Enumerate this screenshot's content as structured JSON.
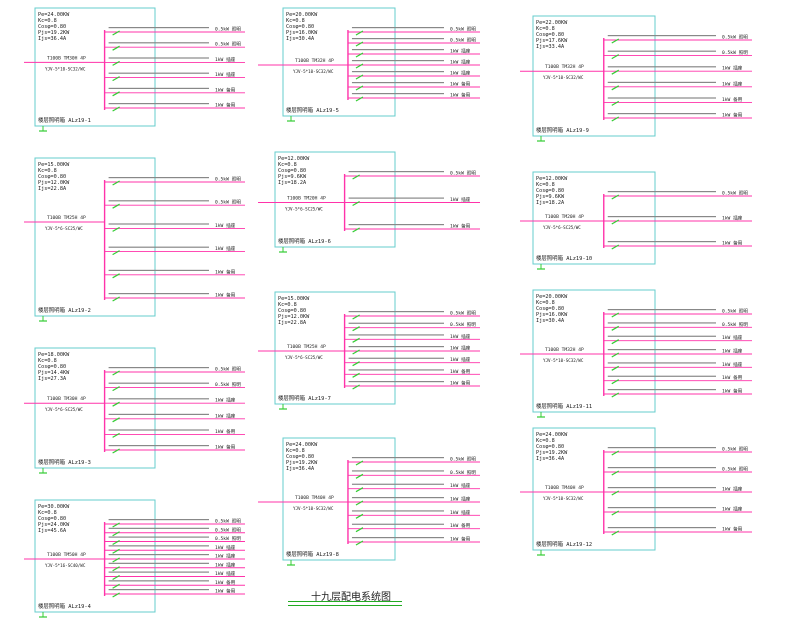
{
  "colors": {
    "frame": "#66cccc",
    "feeder": "#ff33aa",
    "bus": "#ff33aa",
    "breaker": "#33cc33",
    "text": "#222222"
  },
  "drawing_title": "十九层配电系统图",
  "panels": [
    {
      "params": [
        "Pe=24.00KW",
        "Kc=0.8",
        "Cosφ=0.80",
        "Pjs=19.2KW",
        "Ijs=36.4A"
      ],
      "incoming": [
        "T100B TM30H 4P",
        "YJV-5*10-SC32/WC"
      ],
      "footer": "楼层照明箱  ALz19-1",
      "circuits": 6,
      "labels": [
        "0.5kW 照明",
        "0.5kW 照明",
        "1kW 插座",
        "1kW 插座",
        "1kW 备用",
        "1kW 备用"
      ]
    },
    {
      "params": [
        "Pe=15.00KW",
        "Kc=0.8",
        "Cosφ=0.80",
        "Pjs=12.0KW",
        "Ijs=22.8A"
      ],
      "incoming": [
        "T100B TM25H 4P",
        "YJV-5*6-SC25/WC"
      ],
      "footer": "楼层照明箱  ALz19-2",
      "circuits": 6,
      "labels": [
        "0.5kW 照明",
        "0.5kW 照明",
        "1kW 插座",
        "1kW 插座",
        "1kW 备用",
        "1kW 备用"
      ]
    },
    {
      "params": [
        "Pe=18.00KW",
        "Kc=0.8",
        "Cosφ=0.80",
        "Pjs=14.4KW",
        "Ijs=27.3A"
      ],
      "incoming": [
        "T100B TM30H 4P",
        "YJV-5*6-SC25/WC"
      ],
      "footer": "楼层照明箱  ALz19-3",
      "circuits": 6,
      "labels": [
        "0.5kW 照明",
        "0.5kW 照明",
        "1kW 插座",
        "1kW 插座",
        "1kW 备用",
        "1kW 备用"
      ]
    },
    {
      "params": [
        "Pe=30.00KW",
        "Kc=0.8",
        "Cosφ=0.80",
        "Pjs=24.0KW",
        "Ijs=45.6A"
      ],
      "incoming": [
        "T100B TM50H 4P",
        "YJV-5*16-SC40/WC"
      ],
      "footer": "楼层照明箱  ALz19-4",
      "circuits": 9,
      "labels": [
        "0.5kW 照明",
        "0.5kW 照明",
        "0.5kW 照明",
        "1kW 插座",
        "1kW 插座",
        "1kW 插座",
        "1kW 插座",
        "1kW 备用",
        "1kW 备用"
      ]
    },
    {
      "params": [
        "Pe=20.00KW",
        "Kc=0.8",
        "Cosφ=0.80",
        "Pjs=16.0KW",
        "Ijs=30.4A"
      ],
      "incoming": [
        "T100B TM32H 4P",
        "YJV-5*10-SC32/WC"
      ],
      "footer": "楼层照明箱  ALz19-5",
      "circuits": 7,
      "labels": [
        "0.5kW 照明",
        "0.5kW 照明",
        "1kW 插座",
        "1kW 插座",
        "1kW 插座",
        "1kW 备用",
        "1kW 备用"
      ]
    },
    {
      "params": [
        "Pe=12.00KW",
        "Kc=0.8",
        "Cosφ=0.80",
        "Pjs=9.6KW",
        "Ijs=18.2A"
      ],
      "incoming": [
        "T100B TM20H 4P",
        "YJV-5*6-SC25/WC"
      ],
      "footer": "楼层照明箱  ALz19-6",
      "circuits": 3,
      "labels": [
        "0.5kW 照明",
        "1kW 插座",
        "1kW 备用"
      ]
    },
    {
      "params": [
        "Pe=15.00KW",
        "Kc=0.8",
        "Cosφ=0.80",
        "Pjs=12.0KW",
        "Ijs=22.8A"
      ],
      "incoming": [
        "T100B TM25H 4P",
        "YJV-5*6-SC25/WC"
      ],
      "footer": "楼层照明箱  ALz19-7",
      "circuits": 7,
      "labels": [
        "0.5kW 照明",
        "0.5kW 照明",
        "1kW 插座",
        "1kW 插座",
        "1kW 插座",
        "1kW 备用",
        "1kW 备用"
      ]
    },
    {
      "params": [
        "Pe=24.00KW",
        "Kc=0.8",
        "Cosφ=0.80",
        "Pjs=19.2KW",
        "Ijs=36.4A"
      ],
      "incoming": [
        "T100B TM40H 4P",
        "YJV-5*10-SC32/WC"
      ],
      "footer": "楼层照明箱  ALz19-8",
      "circuits": 7,
      "labels": [
        "0.5kW 照明",
        "0.5kW 照明",
        "1kW 插座",
        "1kW 插座",
        "1kW 插座",
        "1kW 备用",
        "1kW 备用"
      ]
    },
    {
      "params": [
        "Pe=22.00KW",
        "Kc=0.8",
        "Cosφ=0.80",
        "Pjs=17.6KW",
        "Ijs=33.4A"
      ],
      "incoming": [
        "T100B TM32H 4P",
        "YJV-5*10-SC32/WC"
      ],
      "footer": "楼层照明箱  ALz19-9",
      "circuits": 6,
      "labels": [
        "0.5kW 照明",
        "0.5kW 照明",
        "1kW 插座",
        "1kW 插座",
        "1kW 备用",
        "1kW 备用"
      ]
    },
    {
      "params": [
        "Pe=12.00KW",
        "Kc=0.8",
        "Cosφ=0.80",
        "Pjs=9.6KW",
        "Ijs=18.2A"
      ],
      "incoming": [
        "T100B TM20H 4P",
        "YJV-5*6-SC25/WC"
      ],
      "footer": "楼层照明箱  ALz19-10",
      "circuits": 3,
      "labels": [
        "0.5kW 照明",
        "1kW 插座",
        "1kW 备用"
      ]
    },
    {
      "params": [
        "Pe=20.00KW",
        "Kc=0.8",
        "Cosφ=0.80",
        "Pjs=16.0KW",
        "Ijs=30.4A"
      ],
      "incoming": [
        "T100B TM32H 4P",
        "YJV-5*10-SC32/WC"
      ],
      "footer": "楼层照明箱  ALz19-11",
      "circuits": 7,
      "labels": [
        "0.5kW 照明",
        "0.5kW 照明",
        "1kW 插座",
        "1kW 插座",
        "1kW 插座",
        "1kW 备用",
        "1kW 备用"
      ]
    },
    {
      "params": [
        "Pe=24.00KW",
        "Kc=0.8",
        "Cosφ=0.80",
        "Pjs=19.2KW",
        "Ijs=36.4A"
      ],
      "incoming": [
        "T100B TM40H 4P",
        "YJV-5*10-SC32/WC"
      ],
      "footer": "楼层照明箱  ALz19-12",
      "circuits": 5,
      "labels": [
        "0.5kW 照明",
        "0.5kW 照明",
        "1kW 插座",
        "1kW 插座",
        "1kW 备用"
      ]
    }
  ]
}
